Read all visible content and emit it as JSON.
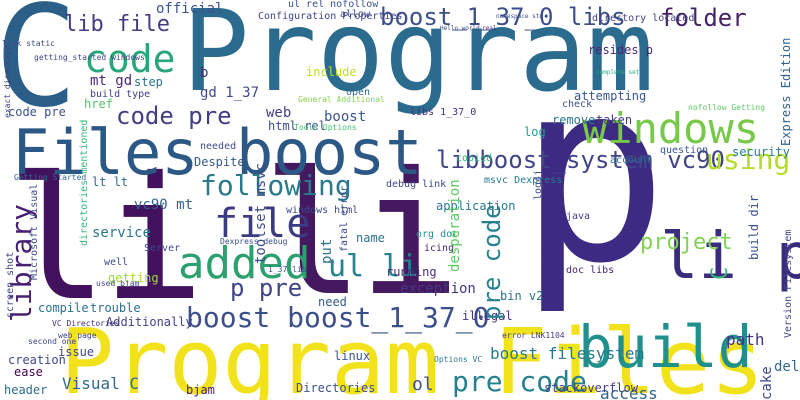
{
  "words": [
    {
      "id": "program-top",
      "text": "Program",
      "color": "#2a6b8e"
    },
    {
      "id": "c-left",
      "text": "C",
      "color": "#2b5f88"
    },
    {
      "id": "program-bottom",
      "text": "Program Files",
      "color": "#f2e21c"
    },
    {
      "id": "li-big",
      "text": "li",
      "color": "#43125f"
    },
    {
      "id": "lib",
      "text": "li",
      "color": "#44195f"
    },
    {
      "id": "p-big",
      "text": "p",
      "color": "#3d2a83"
    },
    {
      "id": "li-right",
      "text": "li p",
      "color": "#3a2c7d"
    },
    {
      "id": "files-boost",
      "text": "Files boost",
      "color": "#2c5885"
    },
    {
      "id": "build",
      "text": "build",
      "color": "#20908d"
    },
    {
      "id": "code",
      "text": "code",
      "color": "#29a77b"
    },
    {
      "id": "windows",
      "text": "windows",
      "color": "#78c94a"
    },
    {
      "id": "added",
      "text": "added",
      "color": "#2da06f"
    },
    {
      "id": "boost-1-37-0-libs",
      "text": "boost_1_37_0 libs",
      "color": "#3b4e89"
    },
    {
      "id": "lib-file",
      "text": "lib file",
      "color": "#433d84"
    },
    {
      "id": "folder",
      "text": "folder",
      "color": "#44226a"
    },
    {
      "id": "file",
      "text": "file",
      "color": "#3a3b83"
    },
    {
      "id": "following",
      "text": "following",
      "color": "#2a7a8c"
    },
    {
      "id": "boost-boost",
      "text": "boost boost_1_37_0",
      "color": "#3b4f8b"
    },
    {
      "id": "p-pre",
      "text": "p pre",
      "color": "#414487"
    },
    {
      "id": "code-pre-1",
      "text": "code pre",
      "color": "#433f87"
    },
    {
      "id": "ul-li",
      "text": "ul li",
      "color": "#25848e"
    },
    {
      "id": "project",
      "text": "project",
      "color": "#7fd34e"
    },
    {
      "id": "library",
      "text": "library",
      "color": "#482073"
    },
    {
      "id": "pre-code",
      "text": "pre code",
      "color": "#27808e"
    },
    {
      "id": "ol",
      "text": "ol",
      "color": "#3b528b"
    },
    {
      "id": "boost-filesystem",
      "text": "boost filesystem",
      "color": "#2a788e"
    },
    {
      "id": "libboost-system",
      "text": "libboost_system vc90",
      "color": "#414487"
    },
    {
      "id": "using",
      "text": "using",
      "color": "#b3dc2b"
    },
    {
      "id": "c-right",
      "text": "C",
      "color": "#35b779"
    },
    {
      "id": "path",
      "text": "path",
      "color": "#46327e"
    },
    {
      "id": "access",
      "text": "access",
      "color": "#33638d"
    },
    {
      "id": "visual-c",
      "text": "Visual C",
      "color": "#31688e"
    },
    {
      "id": "directories",
      "text": "Directories",
      "color": "#3b528b"
    },
    {
      "id": "stackoverflow",
      "text": "stackoverflow",
      "color": "#433e85"
    },
    {
      "id": "cake",
      "text": "cake",
      "color": "#3e4989"
    },
    {
      "id": "delete",
      "text": "delete",
      "color": "#31688e"
    },
    {
      "id": "b",
      "text": "b",
      "color": "#472d7b"
    },
    {
      "id": "gd-1-37",
      "text": "gd 1_37",
      "color": "#3e4a89"
    },
    {
      "id": "mt-gd",
      "text": "mt gd",
      "color": "#472c7a"
    },
    {
      "id": "step",
      "text": "step",
      "color": "#2c728e"
    },
    {
      "id": "href",
      "text": "href",
      "color": "#52c569"
    },
    {
      "id": "official",
      "text": "official",
      "color": "#3b528b"
    },
    {
      "id": "include",
      "text": "include",
      "color": "#c2df23"
    },
    {
      "id": "open",
      "text": "open",
      "color": "#31688e"
    },
    {
      "id": "web",
      "text": "web",
      "color": "#433e85"
    },
    {
      "id": "boost-small",
      "text": "boost",
      "color": "#39568c"
    },
    {
      "id": "resides-p",
      "text": "resides p",
      "color": "#482677"
    },
    {
      "id": "attempting",
      "text": "attempting",
      "color": "#39568c"
    },
    {
      "id": "taken",
      "text": "taken",
      "color": "#453882"
    },
    {
      "id": "check",
      "text": "check",
      "color": "#3a548c"
    },
    {
      "id": "remove",
      "text": "remove",
      "color": "#2a778e"
    },
    {
      "id": "log",
      "text": "log",
      "color": "#1f9e89"
    },
    {
      "id": "security",
      "text": "security",
      "color": "#277f8e"
    },
    {
      "id": "question",
      "text": "question",
      "color": "#38598c"
    },
    {
      "id": "account",
      "text": "account",
      "color": "#2d718e"
    },
    {
      "id": "msvc-dexpress",
      "text": "msvc Dexpress",
      "color": "#287c8e"
    },
    {
      "id": "doc-libs",
      "text": "doc libs",
      "color": "#482475"
    },
    {
      "id": "bin-v2",
      "text": "bin v2",
      "color": "#2c728e"
    },
    {
      "id": "java",
      "text": "java",
      "color": "#433d84"
    },
    {
      "id": "debug-link",
      "text": "debug link",
      "color": "#3f4788"
    },
    {
      "id": "application",
      "text": "application",
      "color": "#2a778e"
    },
    {
      "id": "desperation",
      "text": "desperation",
      "color": "#5ec962"
    },
    {
      "id": "org-doc",
      "text": "org doc",
      "color": "#21908d"
    },
    {
      "id": "icing",
      "text": "icing",
      "color": "#482878"
    },
    {
      "id": "name",
      "text": "name",
      "color": "#2d708e"
    },
    {
      "id": "running",
      "text": "running",
      "color": "#472d7b"
    },
    {
      "id": "exception",
      "text": "exception",
      "color": "#453781"
    },
    {
      "id": "illegal",
      "text": "illegal",
      "color": "#46337f"
    },
    {
      "id": "linux",
      "text": "linux",
      "color": "#39558c"
    },
    {
      "id": "bjam",
      "text": "bjam",
      "color": "#482071"
    },
    {
      "id": "header",
      "text": "header",
      "color": "#2f6c8e"
    },
    {
      "id": "issue",
      "text": "issue",
      "color": "#3f4788"
    },
    {
      "id": "ease",
      "text": "ease",
      "color": "#440154"
    },
    {
      "id": "creation",
      "text": "creation",
      "color": "#3f4788"
    },
    {
      "id": "additionally",
      "text": "Additionally",
      "color": "#414487"
    },
    {
      "id": "compile",
      "text": "compile",
      "color": "#2c728e"
    },
    {
      "id": "trouble",
      "text": "trouble",
      "color": "#2e6e8e"
    },
    {
      "id": "getting",
      "text": "getting",
      "color": "#a0da39"
    },
    {
      "id": "service",
      "text": "service",
      "color": "#2a788e"
    },
    {
      "id": "vc90-mt",
      "text": "vc90 mt",
      "color": "#34618d"
    },
    {
      "id": "lt-lt",
      "text": "lt lt",
      "color": "#2f6b8e"
    },
    {
      "id": "despite",
      "text": "Despite",
      "color": "#375a8c"
    },
    {
      "id": "needed",
      "text": "needed",
      "color": "#3d4e8a"
    },
    {
      "id": "html-rel",
      "text": "html rel",
      "color": "#3e4c8a"
    },
    {
      "id": "code-pre-2",
      "text": "code pre",
      "color": "#3b528b"
    },
    {
      "id": "libs-1-37-0",
      "text": "libs 1_37_0",
      "color": "#472f7d"
    },
    {
      "id": "allow",
      "text": "allow",
      "color": "#3c4f8a"
    },
    {
      "id": "server",
      "text": "Server",
      "color": "#3f4889"
    },
    {
      "id": "well",
      "text": "well",
      "color": "#3d4d8a"
    },
    {
      "id": "windows-html",
      "text": "windows html",
      "color": "#3e4c8a"
    },
    {
      "id": "toolset-msvc",
      "text": "toolset msvc",
      "color": "#3d4e8a"
    },
    {
      "id": "need",
      "text": "need",
      "color": "#375b8d"
    },
    {
      "id": "put",
      "text": "put",
      "color": "#2c738e"
    },
    {
      "id": "copied",
      "text": "copied",
      "color": "#2fb47c"
    },
    {
      "id": "build-dir",
      "text": "build dir",
      "color": "#3a548c"
    },
    {
      "id": "express-edition",
      "text": "Express Edition",
      "color": "#33628d"
    },
    {
      "id": "version-filesystem",
      "text": "Version Filesystem",
      "color": "#3f4788"
    },
    {
      "id": "configuration-properties",
      "text": "Configuration Properties",
      "color": "#414487"
    },
    {
      "id": "ul-rel-nofollow",
      "text": "ul rel nofollow",
      "color": "#3b528b"
    },
    {
      "id": "directory-located",
      "text": "directory located",
      "color": "#414487"
    },
    {
      "id": "link-static",
      "text": "link static",
      "color": "#3e4a89"
    },
    {
      "id": "getting-started-windows",
      "text": "getting_started windows",
      "color": "#3f4788"
    },
    {
      "id": "build-type",
      "text": "build type",
      "color": "#424086"
    },
    {
      "id": "general-additional",
      "text": "General Additional",
      "color": "#84d44b"
    },
    {
      "id": "tools-options",
      "text": "Tools Options",
      "color": "#48c16e"
    },
    {
      "id": "nofollow-getting",
      "text": "nofollow Getting",
      "color": "#5ec962"
    },
    {
      "id": "getting-started-right",
      "text": "Getting Started",
      "color": "#31688e"
    },
    {
      "id": "fatal-error",
      "text": "fatal error",
      "color": "#3e4989"
    },
    {
      "id": "lib-file-small",
      "text": "1_37 lib",
      "color": "#3e4c8a"
    },
    {
      "id": "error-lnk1104",
      "text": "error LNK1104",
      "color": "#433e85"
    },
    {
      "id": "used-bjam",
      "text": "used bjam",
      "color": "#3e4989"
    },
    {
      "id": "dexpress-debug",
      "text": "Dexpress debug",
      "color": "#3b518b"
    },
    {
      "id": "vc-directories",
      "text": "VC Directories",
      "color": "#46327e"
    },
    {
      "id": "web-page",
      "text": "web page",
      "color": "#3f4788"
    },
    {
      "id": "second-one",
      "text": "second one",
      "color": "#404688"
    },
    {
      "id": "options-vc",
      "text": "Options VC",
      "color": "#2a788e"
    },
    {
      "id": "screen-shot",
      "text": "screen shot",
      "color": "#414487"
    },
    {
      "id": "microsoft-visual",
      "text": "Microsoft Visual",
      "color": "#3f4788"
    },
    {
      "id": "exact-directory",
      "text": "exact directory",
      "color": "#424086"
    },
    {
      "id": "directories-mentioned",
      "text": "directories mentioned",
      "color": "#35b779"
    },
    {
      "id": "log4j",
      "text": "log4j",
      "color": "#3e4989"
    },
    {
      "id": "real",
      "text": "real",
      "color": "#482878"
    },
    {
      "id": "complete-set",
      "text": "complete set",
      "color": "#29af7f"
    },
    {
      "id": "namespace-std",
      "text": "namespace std",
      "color": "#3b528b"
    },
    {
      "id": "hello-world",
      "text": "Hello world",
      "color": "#3e4989"
    },
    {
      "id": "std-cout",
      "text": "std cout",
      "color": "#3e4989"
    }
  ]
}
